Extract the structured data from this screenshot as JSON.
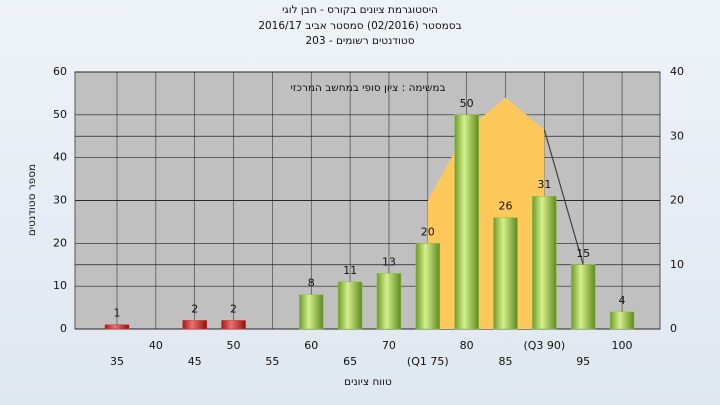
{
  "chart_data": {
    "type": "bar",
    "title": "היסטוגרמת ציונים בקורס - חבן לוגי",
    "subtitle": "בסמסטר  (02/2016)  סמסטר אביב 2016/17",
    "subtitle2": "סטודנטים רשומים - 203",
    "annotation": "במשימה : ציון סופי במחשב המרכזי",
    "ylabel": "מספר סטודנטים",
    "xlabel": "טווח ציונים",
    "categories": [
      "35",
      "40",
      "45",
      "50",
      "55",
      "60",
      "65",
      "70",
      "(Q1 75)",
      "80",
      "85",
      "(Q3 90)",
      "95",
      "100"
    ],
    "series": [
      {
        "values": [
          1,
          null,
          2,
          2,
          null,
          8,
          11,
          13,
          20,
          50,
          26,
          31,
          15,
          4
        ],
        "colors": [
          "#d83030",
          null,
          "#d83030",
          "#d83030",
          null,
          "#8cc43c",
          "#8cc43c",
          "#8cc43c",
          "#8cc43c",
          "#8cc43c",
          "#8cc43c",
          "#8cc43c",
          "#8cc43c",
          "#8cc43c"
        ]
      },
      {
        "kind": "area",
        "axis": "y2",
        "color": "#ffc85a",
        "values": [
          null,
          null,
          null,
          null,
          null,
          null,
          null,
          null,
          20,
          31,
          36,
          31,
          null,
          null
        ]
      },
      {
        "kind": "line",
        "axis": "y2",
        "color": "#404040",
        "values": [
          null,
          null,
          null,
          null,
          null,
          null,
          null,
          null,
          null,
          null,
          null,
          31,
          10,
          null
        ]
      }
    ],
    "ylim": [
      0,
      60
    ],
    "yticks": [
      0,
      10,
      20,
      30,
      40,
      50,
      60
    ],
    "y2lim": [
      0,
      40
    ],
    "y2ticks": [
      0,
      10,
      20,
      30,
      40
    ],
    "grid": true
  }
}
